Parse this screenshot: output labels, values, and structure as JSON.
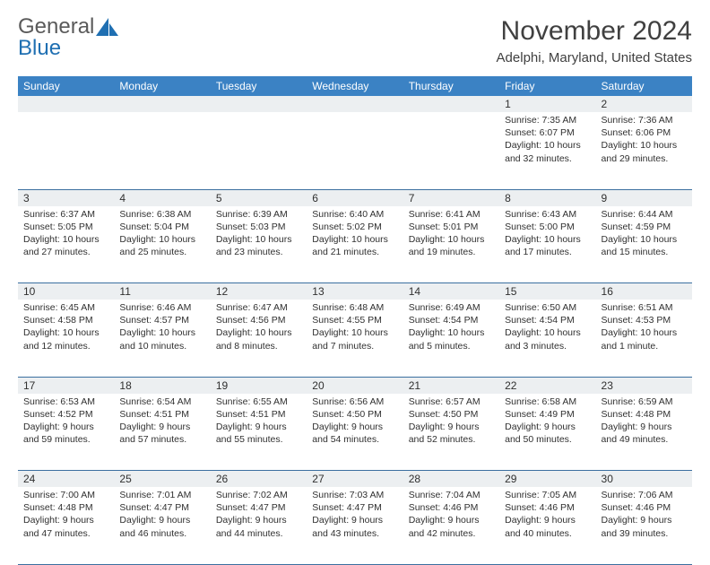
{
  "brand": {
    "line1": "General",
    "line2": "Blue"
  },
  "colors": {
    "header_bg": "#3b82c4",
    "header_fg": "#ffffff",
    "daynum_bg": "#eceff1",
    "rule": "#3b6fa0",
    "text": "#303030",
    "brand_gray": "#5a5a5a",
    "brand_blue": "#1f6fb2"
  },
  "title": "November 2024",
  "location": "Adelphi, Maryland, United States",
  "days": [
    "Sunday",
    "Monday",
    "Tuesday",
    "Wednesday",
    "Thursday",
    "Friday",
    "Saturday"
  ],
  "weeks": [
    [
      null,
      null,
      null,
      null,
      null,
      {
        "n": "1",
        "sr": "7:35 AM",
        "ss": "6:07 PM",
        "dl1": "Daylight: 10 hours",
        "dl2": "and 32 minutes."
      },
      {
        "n": "2",
        "sr": "7:36 AM",
        "ss": "6:06 PM",
        "dl1": "Daylight: 10 hours",
        "dl2": "and 29 minutes."
      }
    ],
    [
      {
        "n": "3",
        "sr": "6:37 AM",
        "ss": "5:05 PM",
        "dl1": "Daylight: 10 hours",
        "dl2": "and 27 minutes."
      },
      {
        "n": "4",
        "sr": "6:38 AM",
        "ss": "5:04 PM",
        "dl1": "Daylight: 10 hours",
        "dl2": "and 25 minutes."
      },
      {
        "n": "5",
        "sr": "6:39 AM",
        "ss": "5:03 PM",
        "dl1": "Daylight: 10 hours",
        "dl2": "and 23 minutes."
      },
      {
        "n": "6",
        "sr": "6:40 AM",
        "ss": "5:02 PM",
        "dl1": "Daylight: 10 hours",
        "dl2": "and 21 minutes."
      },
      {
        "n": "7",
        "sr": "6:41 AM",
        "ss": "5:01 PM",
        "dl1": "Daylight: 10 hours",
        "dl2": "and 19 minutes."
      },
      {
        "n": "8",
        "sr": "6:43 AM",
        "ss": "5:00 PM",
        "dl1": "Daylight: 10 hours",
        "dl2": "and 17 minutes."
      },
      {
        "n": "9",
        "sr": "6:44 AM",
        "ss": "4:59 PM",
        "dl1": "Daylight: 10 hours",
        "dl2": "and 15 minutes."
      }
    ],
    [
      {
        "n": "10",
        "sr": "6:45 AM",
        "ss": "4:58 PM",
        "dl1": "Daylight: 10 hours",
        "dl2": "and 12 minutes."
      },
      {
        "n": "11",
        "sr": "6:46 AM",
        "ss": "4:57 PM",
        "dl1": "Daylight: 10 hours",
        "dl2": "and 10 minutes."
      },
      {
        "n": "12",
        "sr": "6:47 AM",
        "ss": "4:56 PM",
        "dl1": "Daylight: 10 hours",
        "dl2": "and 8 minutes."
      },
      {
        "n": "13",
        "sr": "6:48 AM",
        "ss": "4:55 PM",
        "dl1": "Daylight: 10 hours",
        "dl2": "and 7 minutes."
      },
      {
        "n": "14",
        "sr": "6:49 AM",
        "ss": "4:54 PM",
        "dl1": "Daylight: 10 hours",
        "dl2": "and 5 minutes."
      },
      {
        "n": "15",
        "sr": "6:50 AM",
        "ss": "4:54 PM",
        "dl1": "Daylight: 10 hours",
        "dl2": "and 3 minutes."
      },
      {
        "n": "16",
        "sr": "6:51 AM",
        "ss": "4:53 PM",
        "dl1": "Daylight: 10 hours",
        "dl2": "and 1 minute."
      }
    ],
    [
      {
        "n": "17",
        "sr": "6:53 AM",
        "ss": "4:52 PM",
        "dl1": "Daylight: 9 hours",
        "dl2": "and 59 minutes."
      },
      {
        "n": "18",
        "sr": "6:54 AM",
        "ss": "4:51 PM",
        "dl1": "Daylight: 9 hours",
        "dl2": "and 57 minutes."
      },
      {
        "n": "19",
        "sr": "6:55 AM",
        "ss": "4:51 PM",
        "dl1": "Daylight: 9 hours",
        "dl2": "and 55 minutes."
      },
      {
        "n": "20",
        "sr": "6:56 AM",
        "ss": "4:50 PM",
        "dl1": "Daylight: 9 hours",
        "dl2": "and 54 minutes."
      },
      {
        "n": "21",
        "sr": "6:57 AM",
        "ss": "4:50 PM",
        "dl1": "Daylight: 9 hours",
        "dl2": "and 52 minutes."
      },
      {
        "n": "22",
        "sr": "6:58 AM",
        "ss": "4:49 PM",
        "dl1": "Daylight: 9 hours",
        "dl2": "and 50 minutes."
      },
      {
        "n": "23",
        "sr": "6:59 AM",
        "ss": "4:48 PM",
        "dl1": "Daylight: 9 hours",
        "dl2": "and 49 minutes."
      }
    ],
    [
      {
        "n": "24",
        "sr": "7:00 AM",
        "ss": "4:48 PM",
        "dl1": "Daylight: 9 hours",
        "dl2": "and 47 minutes."
      },
      {
        "n": "25",
        "sr": "7:01 AM",
        "ss": "4:47 PM",
        "dl1": "Daylight: 9 hours",
        "dl2": "and 46 minutes."
      },
      {
        "n": "26",
        "sr": "7:02 AM",
        "ss": "4:47 PM",
        "dl1": "Daylight: 9 hours",
        "dl2": "and 44 minutes."
      },
      {
        "n": "27",
        "sr": "7:03 AM",
        "ss": "4:47 PM",
        "dl1": "Daylight: 9 hours",
        "dl2": "and 43 minutes."
      },
      {
        "n": "28",
        "sr": "7:04 AM",
        "ss": "4:46 PM",
        "dl1": "Daylight: 9 hours",
        "dl2": "and 42 minutes."
      },
      {
        "n": "29",
        "sr": "7:05 AM",
        "ss": "4:46 PM",
        "dl1": "Daylight: 9 hours",
        "dl2": "and 40 minutes."
      },
      {
        "n": "30",
        "sr": "7:06 AM",
        "ss": "4:46 PM",
        "dl1": "Daylight: 9 hours",
        "dl2": "and 39 minutes."
      }
    ]
  ],
  "labels": {
    "sunrise": "Sunrise:",
    "sunset": "Sunset:"
  }
}
